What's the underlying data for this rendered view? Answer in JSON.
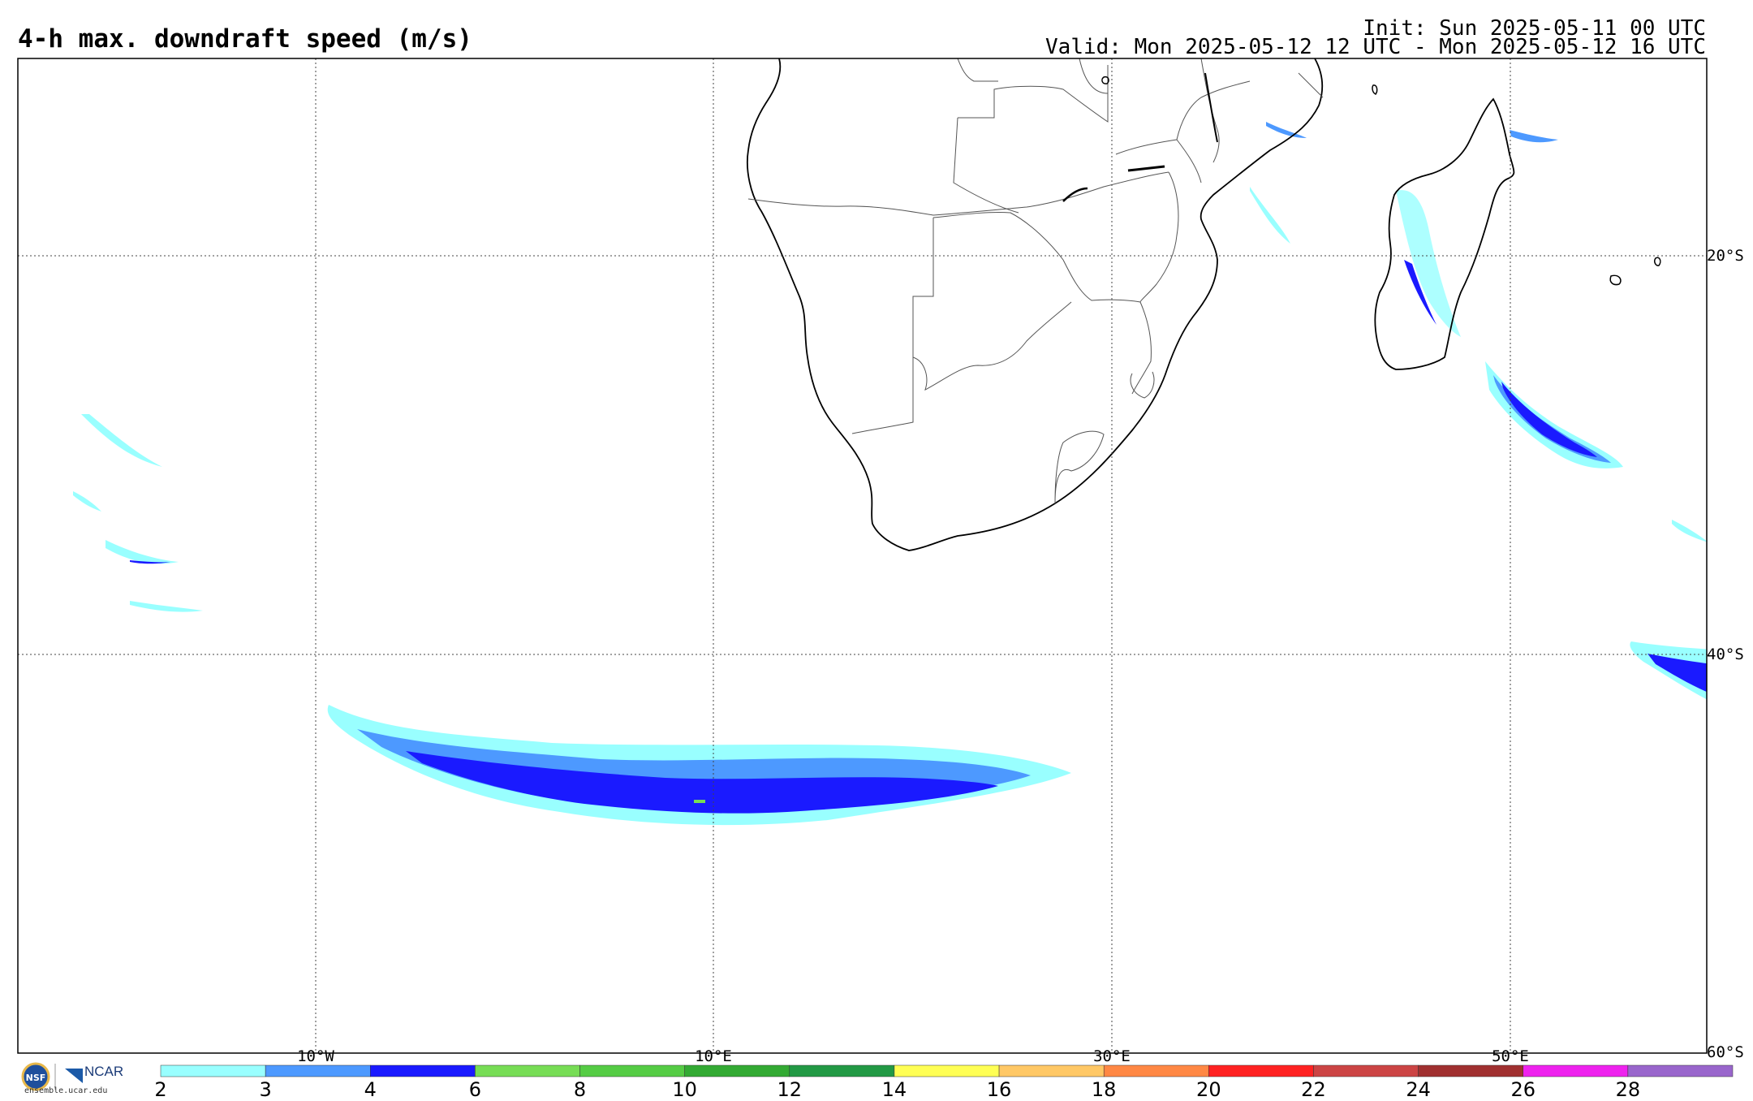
{
  "header": {
    "title": "4-h max. downdraft speed (m/s)",
    "init": "Init: Sun 2025-05-11 00 UTC",
    "valid": "Valid: Mon 2025-05-12 12 UTC - Mon 2025-05-12 16 UTC"
  },
  "map": {
    "lat_labels": [
      "20°S",
      "40°S",
      "60°S"
    ],
    "lon_labels": [
      "10°W",
      "10°E",
      "30°E",
      "50°E"
    ],
    "extent": {
      "lon_min": -25,
      "lon_max": 60,
      "lat_max": -10,
      "lat_min": -60
    }
  },
  "colorbar": {
    "ticks": [
      "2",
      "3",
      "4",
      "6",
      "8",
      "10",
      "12",
      "14",
      "16",
      "18",
      "20",
      "22",
      "24",
      "26",
      "28"
    ],
    "colors": [
      "#99ffff",
      "#4d99ff",
      "#1a1aff",
      "#77dd55",
      "#55cc44",
      "#33aa33",
      "#229944",
      "#ffff55",
      "#ffc866",
      "#ff8844",
      "#ff2222",
      "#cc4444",
      "#a03030",
      "#ee22ee",
      "#9966cc"
    ]
  },
  "footer": {
    "site": "ensemble.ucar.edu",
    "ncar": "NCAR",
    "nsf": "NSF"
  }
}
